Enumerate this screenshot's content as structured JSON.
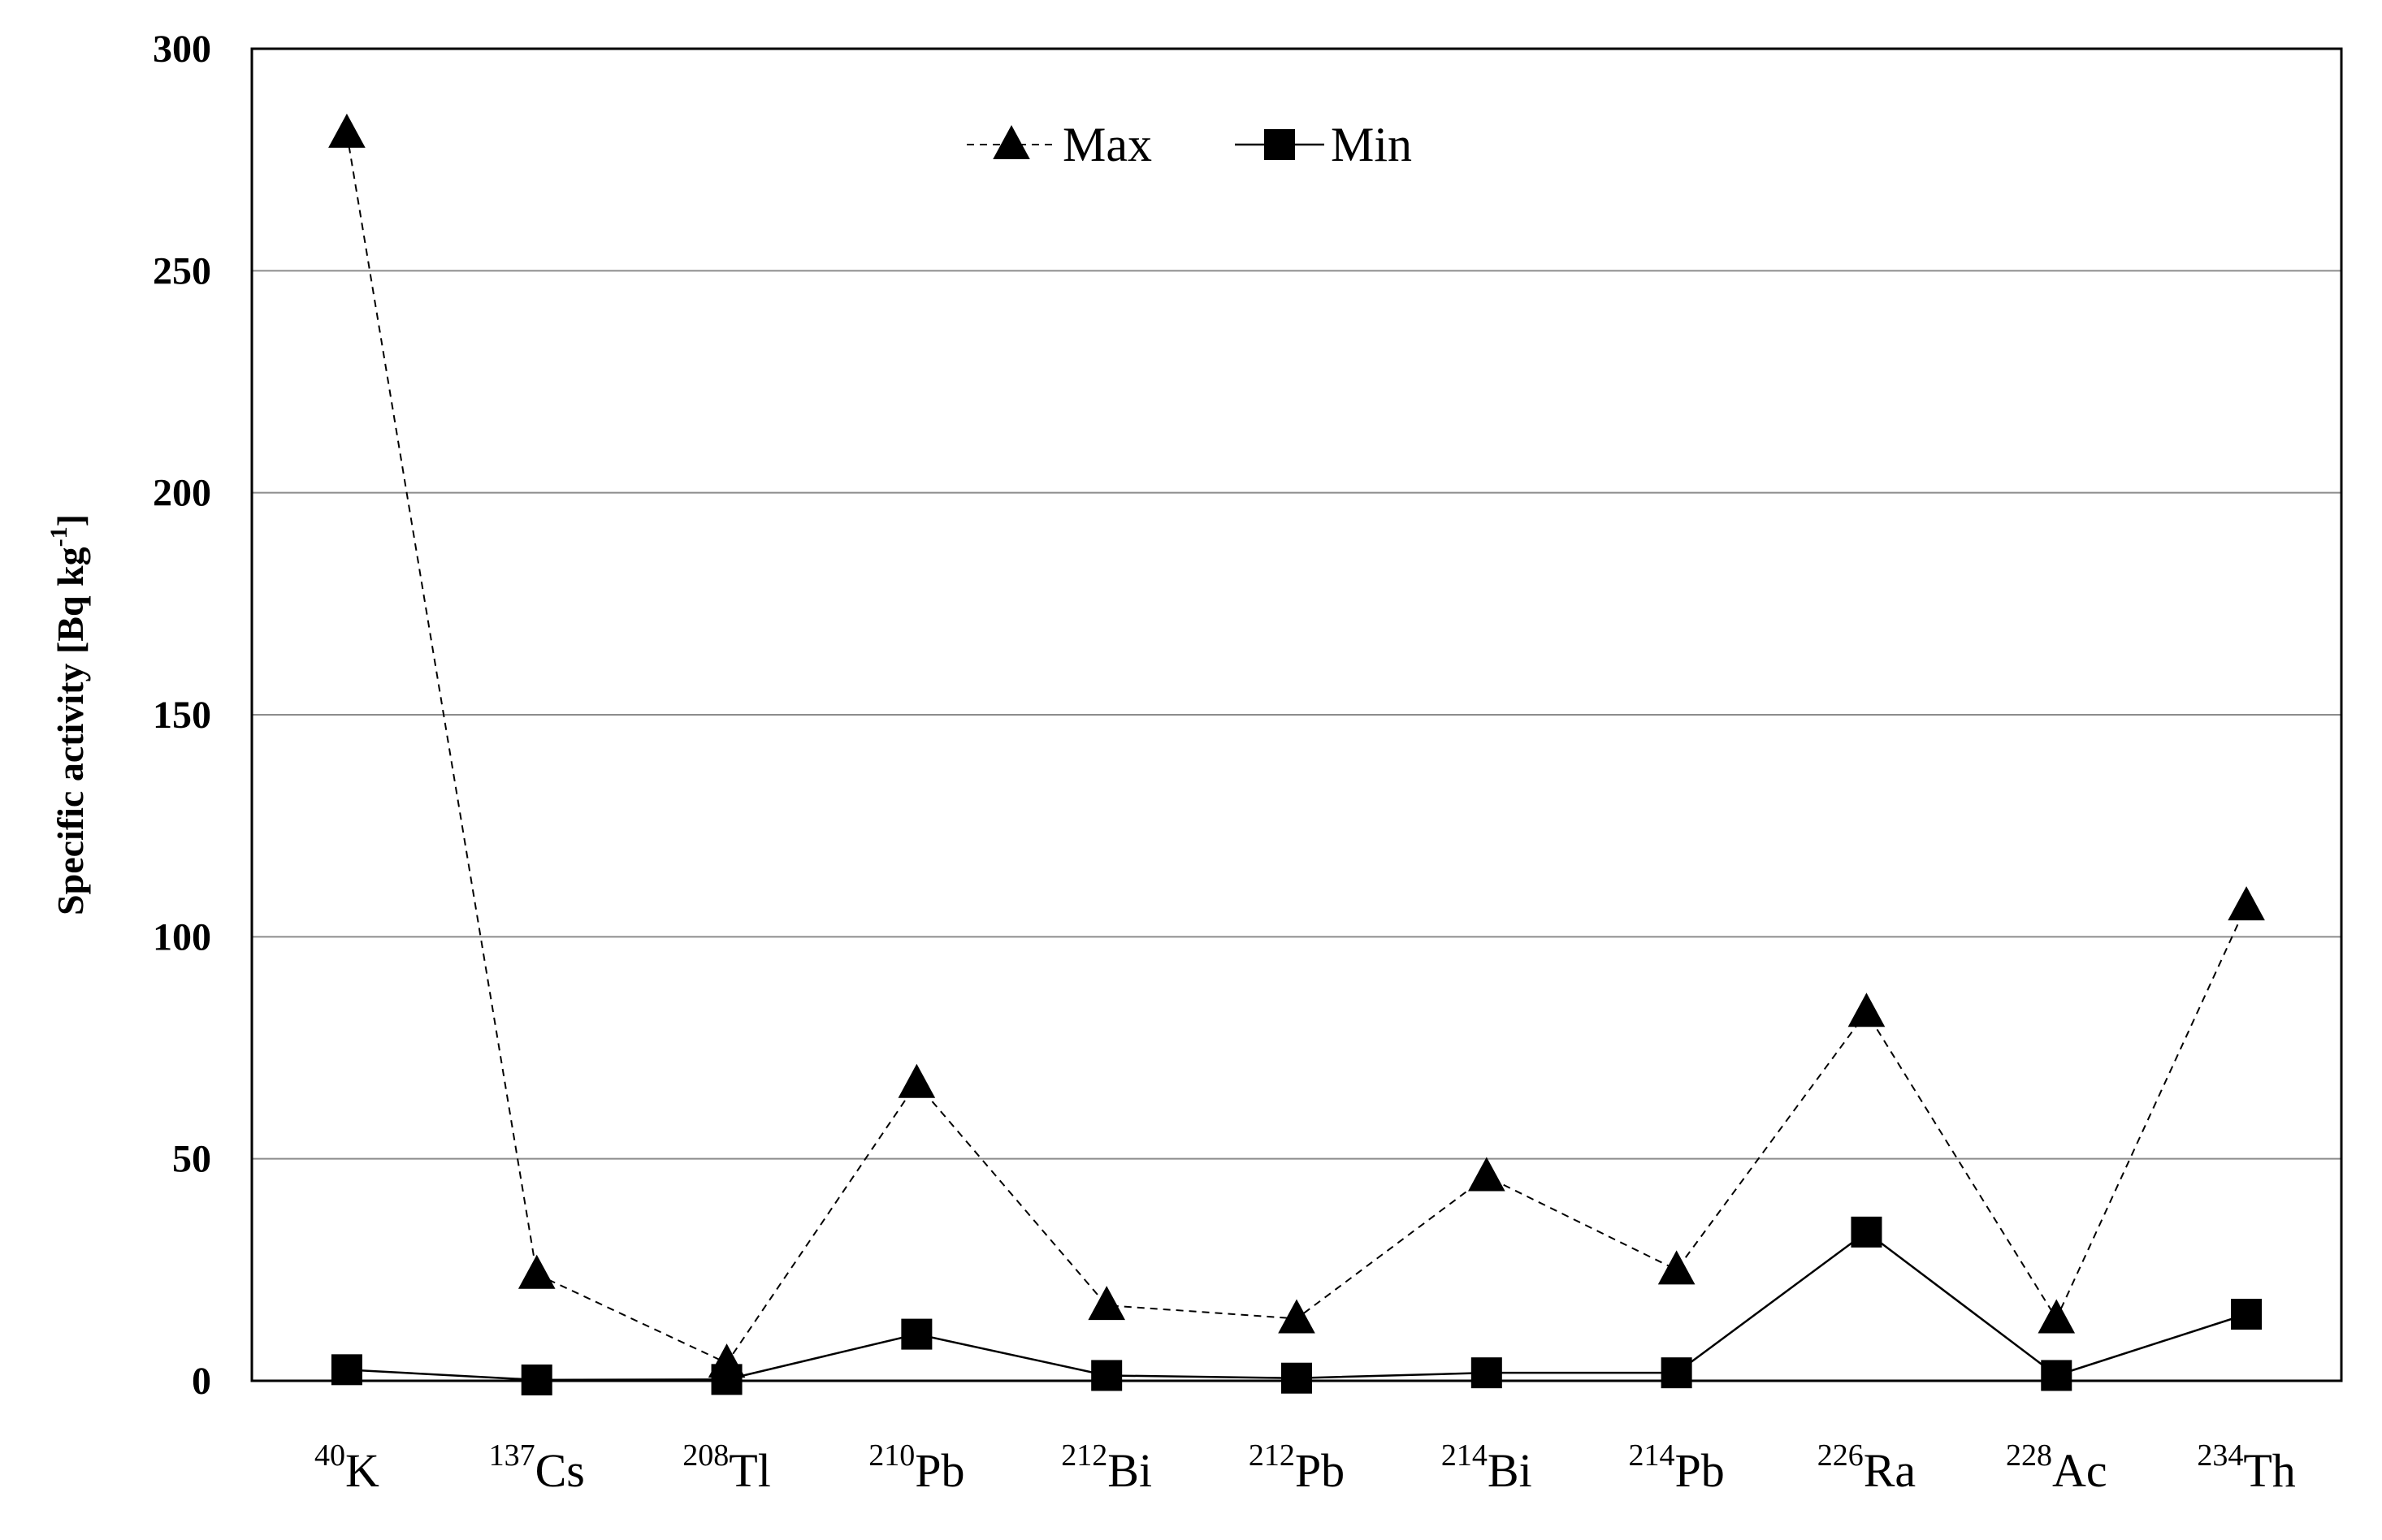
{
  "chart_data": {
    "type": "line",
    "ylabel": "Specific activity  [Bq kg-1]",
    "ylabel_parts": {
      "main": "Specific activity  [Bq kg",
      "sup": "-1",
      "tail": "]"
    },
    "ylim": [
      0,
      300
    ],
    "yticks": [
      "0",
      "50",
      "100",
      "150",
      "200",
      "250",
      "300"
    ],
    "ytick_values": [
      0,
      50,
      100,
      150,
      200,
      250,
      300
    ],
    "grid": true,
    "legend_position": "top-center",
    "categories": [
      "40K",
      "137Cs",
      "208Tl",
      "210Pb",
      "212Bi",
      "212Pb",
      "214Bi",
      "214Pb",
      "226Ra",
      "228Ac",
      "234Th"
    ],
    "category_labels": [
      {
        "mass": "40",
        "element": "K"
      },
      {
        "mass": "137",
        "element": "Cs"
      },
      {
        "mass": "208",
        "element": "Tl"
      },
      {
        "mass": "210",
        "element": "Pb"
      },
      {
        "mass": "212",
        "element": "Bi"
      },
      {
        "mass": "212",
        "element": "Pb"
      },
      {
        "mass": "214",
        "element": "Bi"
      },
      {
        "mass": "214",
        "element": "Pb"
      },
      {
        "mass": "226",
        "element": "Ra"
      },
      {
        "mass": "228",
        "element": "Ac"
      },
      {
        "mass": "234",
        "element": "Th"
      }
    ],
    "series": [
      {
        "name": "Max",
        "marker": "triangle",
        "line_style": "dashed",
        "values": [
          281,
          24,
          4,
          67,
          17,
          14,
          46,
          25,
          83,
          14,
          107
        ]
      },
      {
        "name": "Min",
        "marker": "square",
        "line_style": "solid",
        "values": [
          2.5,
          0.2,
          0.3,
          10.5,
          1.2,
          0.6,
          1.8,
          1.8,
          33.5,
          1.2,
          15
        ]
      }
    ]
  }
}
